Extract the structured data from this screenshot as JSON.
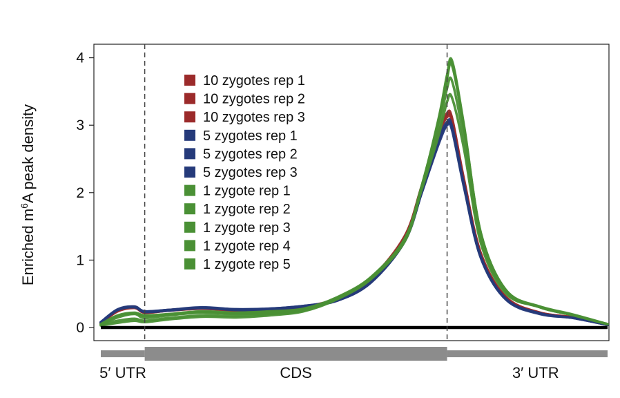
{
  "chart_data": {
    "type": "line",
    "ylabel_parts": [
      "Enriched m",
      "6",
      "A peak density"
    ],
    "ylim": [
      0,
      4
    ],
    "yticks": [
      "0",
      "1",
      "2",
      "3",
      "4"
    ],
    "xlim": [
      0,
      3
    ],
    "boundaries": [
      0.26,
      2.05
    ],
    "regions": [
      {
        "label": "5′ UTR",
        "start": 0,
        "end": 0.26
      },
      {
        "label": "CDS",
        "start": 0.26,
        "end": 2.05
      },
      {
        "label": "3′ UTR",
        "start": 2.05,
        "end": 3.0
      }
    ],
    "baseline": 0,
    "legend_position": "top-left",
    "colors": {
      "10 zygotes": "#9b2a2a",
      "5 zygotes": "#253a7a",
      "1 zygote": "#4a9035",
      "baseline": "#000000",
      "gene_bar": "#8c8c8c",
      "dashed": "#444444"
    },
    "series": [
      {
        "name": "10 zygotes rep 1",
        "color": "#9b2a2a",
        "x": [
          0,
          0.1,
          0.2,
          0.26,
          0.4,
          0.6,
          0.8,
          1.0,
          1.2,
          1.4,
          1.6,
          1.8,
          1.9,
          2.0,
          2.05,
          2.08,
          2.15,
          2.25,
          2.4,
          2.6,
          2.8,
          3.0
        ],
        "y": [
          0.06,
          0.25,
          0.3,
          0.22,
          0.25,
          0.28,
          0.26,
          0.26,
          0.3,
          0.42,
          0.72,
          1.35,
          2.1,
          2.9,
          3.18,
          3.1,
          2.2,
          1.1,
          0.45,
          0.22,
          0.15,
          0.04
        ]
      },
      {
        "name": "10 zygotes rep 2",
        "color": "#9b2a2a",
        "x": [
          0,
          0.1,
          0.2,
          0.26,
          0.4,
          0.6,
          0.8,
          1.0,
          1.2,
          1.4,
          1.6,
          1.8,
          1.9,
          2.0,
          2.05,
          2.08,
          2.15,
          2.25,
          2.4,
          2.6,
          2.8,
          3.0
        ],
        "y": [
          0.07,
          0.26,
          0.31,
          0.23,
          0.26,
          0.29,
          0.26,
          0.27,
          0.31,
          0.43,
          0.73,
          1.36,
          2.1,
          2.88,
          3.15,
          3.07,
          2.18,
          1.09,
          0.44,
          0.22,
          0.15,
          0.04
        ]
      },
      {
        "name": "10 zygotes rep 3",
        "color": "#9b2a2a",
        "x": [
          0,
          0.1,
          0.2,
          0.26,
          0.4,
          0.6,
          0.8,
          1.0,
          1.2,
          1.4,
          1.6,
          1.8,
          1.9,
          2.0,
          2.05,
          2.08,
          2.15,
          2.25,
          2.4,
          2.6,
          2.8,
          3.0
        ],
        "y": [
          0.06,
          0.24,
          0.29,
          0.22,
          0.25,
          0.28,
          0.25,
          0.26,
          0.3,
          0.42,
          0.72,
          1.34,
          2.08,
          2.85,
          3.12,
          3.04,
          2.16,
          1.08,
          0.44,
          0.21,
          0.15,
          0.04
        ]
      },
      {
        "name": "5 zygotes rep 1",
        "color": "#253a7a",
        "x": [
          0,
          0.1,
          0.2,
          0.26,
          0.4,
          0.6,
          0.8,
          1.0,
          1.2,
          1.4,
          1.6,
          1.8,
          1.9,
          2.0,
          2.05,
          2.08,
          2.15,
          2.25,
          2.4,
          2.6,
          2.8,
          3.0
        ],
        "y": [
          0.08,
          0.27,
          0.31,
          0.24,
          0.26,
          0.3,
          0.27,
          0.28,
          0.32,
          0.41,
          0.68,
          1.3,
          2.02,
          2.78,
          3.05,
          2.98,
          2.12,
          1.05,
          0.42,
          0.21,
          0.14,
          0.04
        ]
      },
      {
        "name": "5 zygotes rep 2",
        "color": "#253a7a",
        "x": [
          0,
          0.1,
          0.2,
          0.26,
          0.4,
          0.6,
          0.8,
          1.0,
          1.2,
          1.4,
          1.6,
          1.8,
          1.9,
          2.0,
          2.05,
          2.08,
          2.15,
          2.25,
          2.4,
          2.6,
          2.8,
          3.0
        ],
        "y": [
          0.08,
          0.26,
          0.3,
          0.24,
          0.26,
          0.29,
          0.27,
          0.28,
          0.32,
          0.4,
          0.67,
          1.29,
          2.0,
          2.75,
          3.02,
          2.95,
          2.1,
          1.04,
          0.42,
          0.21,
          0.14,
          0.04
        ]
      },
      {
        "name": "5 zygotes rep 3",
        "color": "#253a7a",
        "x": [
          0,
          0.1,
          0.2,
          0.26,
          0.4,
          0.6,
          0.8,
          1.0,
          1.2,
          1.4,
          1.6,
          1.8,
          1.9,
          2.0,
          2.05,
          2.08,
          2.15,
          2.25,
          2.4,
          2.6,
          2.8,
          3.0
        ],
        "y": [
          0.07,
          0.26,
          0.3,
          0.23,
          0.25,
          0.29,
          0.26,
          0.27,
          0.31,
          0.4,
          0.67,
          1.28,
          2.0,
          2.72,
          3.0,
          2.92,
          2.08,
          1.03,
          0.41,
          0.2,
          0.14,
          0.04
        ]
      },
      {
        "name": "1 zygote rep 1",
        "color": "#4a9035",
        "x": [
          0,
          0.1,
          0.2,
          0.26,
          0.4,
          0.6,
          0.8,
          1.0,
          1.2,
          1.4,
          1.6,
          1.8,
          1.9,
          2.0,
          2.05,
          2.08,
          2.15,
          2.25,
          2.4,
          2.6,
          2.8,
          3.0
        ],
        "y": [
          0.05,
          0.18,
          0.22,
          0.18,
          0.2,
          0.24,
          0.22,
          0.24,
          0.28,
          0.45,
          0.75,
          1.32,
          2.1,
          3.1,
          3.75,
          3.95,
          3.0,
          1.4,
          0.55,
          0.3,
          0.18,
          0.05
        ]
      },
      {
        "name": "1 zygote rep 2",
        "color": "#4a9035",
        "x": [
          0,
          0.1,
          0.2,
          0.26,
          0.4,
          0.6,
          0.8,
          1.0,
          1.2,
          1.4,
          1.6,
          1.8,
          1.9,
          2.0,
          2.05,
          2.08,
          2.15,
          2.25,
          2.4,
          2.6,
          2.8,
          3.0
        ],
        "y": [
          0.04,
          0.15,
          0.2,
          0.14,
          0.18,
          0.22,
          0.2,
          0.21,
          0.26,
          0.44,
          0.74,
          1.32,
          2.1,
          3.05,
          3.7,
          3.88,
          2.95,
          1.38,
          0.54,
          0.3,
          0.18,
          0.05
        ]
      },
      {
        "name": "1 zygote rep 3",
        "color": "#4a9035",
        "x": [
          0,
          0.1,
          0.2,
          0.26,
          0.4,
          0.6,
          0.8,
          1.0,
          1.2,
          1.4,
          1.6,
          1.8,
          1.9,
          2.0,
          2.05,
          2.08,
          2.15,
          2.25,
          2.4,
          2.6,
          2.8,
          3.0
        ],
        "y": [
          0.04,
          0.1,
          0.13,
          0.1,
          0.14,
          0.18,
          0.17,
          0.2,
          0.25,
          0.43,
          0.73,
          1.3,
          2.08,
          2.95,
          3.55,
          3.65,
          2.8,
          1.3,
          0.52,
          0.3,
          0.18,
          0.05
        ]
      },
      {
        "name": "1 zygote rep 4",
        "color": "#4a9035",
        "x": [
          0,
          0.1,
          0.2,
          0.26,
          0.4,
          0.6,
          0.8,
          1.0,
          1.2,
          1.4,
          1.6,
          1.8,
          1.9,
          2.0,
          2.05,
          2.08,
          2.15,
          2.25,
          2.4,
          2.6,
          2.8,
          3.0
        ],
        "y": [
          0.03,
          0.07,
          0.1,
          0.08,
          0.12,
          0.16,
          0.15,
          0.18,
          0.24,
          0.42,
          0.72,
          1.28,
          2.05,
          2.85,
          3.35,
          3.4,
          2.65,
          1.25,
          0.5,
          0.31,
          0.19,
          0.05
        ]
      },
      {
        "name": "1 zygote rep 5",
        "color": "#4a9035",
        "x": [
          0,
          0.1,
          0.2,
          0.26,
          0.4,
          0.6,
          0.8,
          1.0,
          1.2,
          1.4,
          1.6,
          1.8,
          1.9,
          2.0,
          2.05,
          2.08,
          2.15,
          2.25,
          2.4,
          2.6,
          2.8,
          3.0
        ],
        "y": [
          0.05,
          0.17,
          0.21,
          0.17,
          0.19,
          0.23,
          0.21,
          0.23,
          0.27,
          0.44,
          0.74,
          1.32,
          2.1,
          3.08,
          3.72,
          3.92,
          2.98,
          1.4,
          0.55,
          0.31,
          0.18,
          0.05
        ]
      }
    ]
  }
}
